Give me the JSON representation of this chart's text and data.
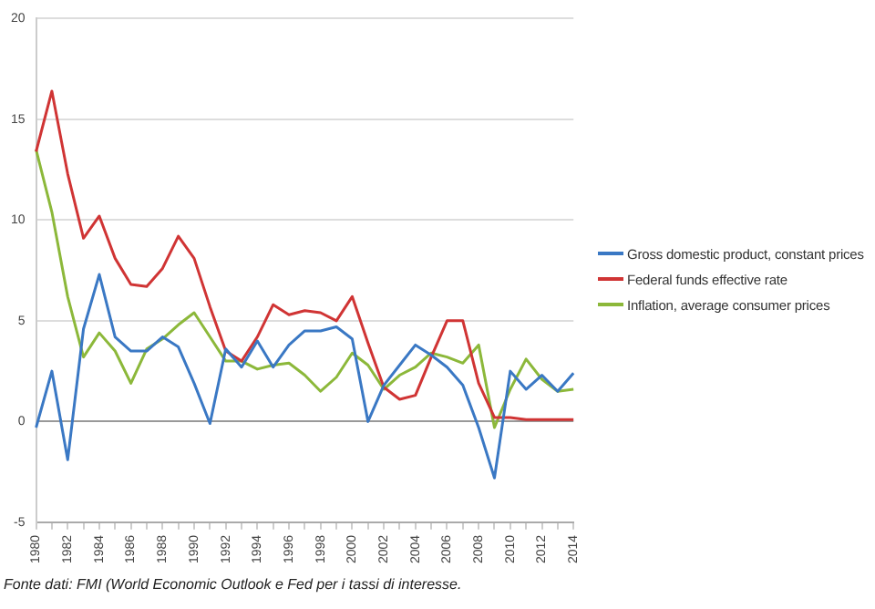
{
  "chart_data": {
    "type": "line",
    "categories": [
      "1980",
      null,
      "1982",
      null,
      "1984",
      null,
      "1986",
      null,
      "1988",
      null,
      "1990",
      null,
      "1992",
      null,
      "1994",
      null,
      "1996",
      null,
      "1998",
      null,
      "2000",
      null,
      "2002",
      null,
      "2004",
      null,
      "2006",
      null,
      "2008",
      null,
      "2010",
      null,
      "2012",
      null,
      "2014"
    ],
    "series": [
      {
        "name": "Gross domestic product, constant prices",
        "color": "#3a78c4",
        "values": [
          -0.3,
          2.5,
          -1.9,
          4.6,
          7.3,
          4.2,
          3.5,
          3.5,
          4.2,
          3.7,
          1.9,
          -0.1,
          3.6,
          2.7,
          4.0,
          2.7,
          3.8,
          4.5,
          4.5,
          4.7,
          4.1,
          0.0,
          1.8,
          2.8,
          3.8,
          3.3,
          2.7,
          1.8,
          -0.3,
          -2.8,
          2.5,
          1.6,
          2.3,
          1.5,
          2.4
        ]
      },
      {
        "name": "Federal funds effective rate",
        "color": "#d03434",
        "values": [
          13.4,
          16.4,
          12.3,
          9.1,
          10.2,
          8.1,
          6.8,
          6.7,
          7.6,
          9.2,
          8.1,
          5.7,
          3.5,
          3.0,
          4.2,
          5.8,
          5.3,
          5.5,
          5.4,
          5.0,
          6.2,
          3.9,
          1.7,
          1.1,
          1.3,
          3.2,
          5.0,
          5.0,
          1.9,
          0.2,
          0.2,
          0.1,
          0.1,
          0.1,
          0.1
        ]
      },
      {
        "name": "Inflation, average consumer prices",
        "color": "#8cb83a",
        "values": [
          13.5,
          10.4,
          6.2,
          3.2,
          4.4,
          3.5,
          1.9,
          3.6,
          4.1,
          4.8,
          5.4,
          4.2,
          3.0,
          3.0,
          2.6,
          2.8,
          2.9,
          2.3,
          1.5,
          2.2,
          3.4,
          2.8,
          1.6,
          2.3,
          2.7,
          3.4,
          3.2,
          2.9,
          3.8,
          -0.3,
          1.6,
          3.1,
          2.1,
          1.5,
          1.6
        ]
      }
    ],
    "ylim": [
      -5,
      20
    ],
    "yticks": [
      -5,
      0,
      5,
      10,
      15,
      20
    ],
    "grid": "y",
    "legend": "right",
    "marker": "none",
    "line_style": "solid",
    "annotations": [
      "Fonte dati: FMI (World Economic Outlook e Fed per i tassi di interesse."
    ]
  }
}
